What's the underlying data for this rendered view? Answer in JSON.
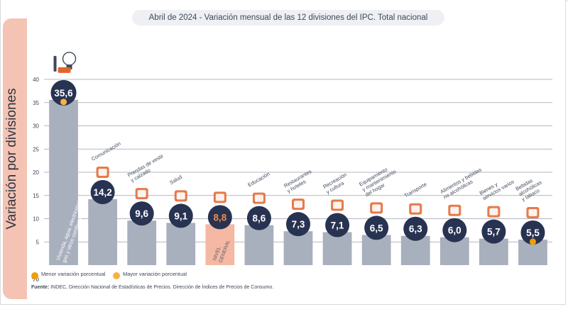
{
  "header": {
    "title": "Abril de 2024 - Variación mensual de las 12 divisiones del IPC. Total nacional"
  },
  "legend": {
    "min_label": "Menor variación porcentual",
    "max_label": "Mayor variación porcentual",
    "min_color": "#f0a000",
    "max_color": "#f7b23e"
  },
  "source": {
    "prefix": "Fuente:",
    "text": "INDEC, Dirección Nacional de Estadísticas de Precios. Dirección de Índices de Precios de Consumo."
  },
  "chart_data": {
    "type": "bar",
    "title": "Abril de 2024 - Variación mensual de las 12 divisiones del IPC. Total nacional",
    "xlabel": "",
    "ylabel": "Variación por divisiones",
    "y_unit": "%",
    "ylim": [
      0,
      40
    ],
    "yticks": [
      5,
      10,
      15,
      20,
      25,
      30,
      35,
      40
    ],
    "grid": true,
    "categories": [
      "Vivienda, agua, electricidad, gas y otros combustibles",
      "Comunicación",
      "Prendas de vestir y calzado",
      "Salud",
      "Nivel general",
      "Educación",
      "Restaurantes y hoteles",
      "Recreación y cultura",
      "Equipamiento y mantenimiento del hogar",
      "Transporte",
      "Alimentos y bebidas no alcohólicas",
      "Bienes y servicios varios",
      "Bebidas alcohólicas y tabaco"
    ],
    "category_labels": [
      [
        "Vivienda, agua, electricidad,",
        "gas y otros combustibles"
      ],
      [
        "Comunicación"
      ],
      [
        "Prendas de vestir",
        "y calzado"
      ],
      [
        "Salud"
      ],
      [
        "NIVEL",
        "GENERAL"
      ],
      [
        "Educación"
      ],
      [
        "Restaurantes",
        "y hoteles"
      ],
      [
        "Recreación",
        "y cultura"
      ],
      [
        "Equipamiento",
        "y mantenimiento",
        "del hogar"
      ],
      [
        "Transporte"
      ],
      [
        "Alimentos y bebidas",
        "no alcohólicas"
      ],
      [
        "Bienes y",
        "servicios varios"
      ],
      [
        "Bebidas",
        "alcohólicas",
        "y tabaco"
      ]
    ],
    "values": [
      35.6,
      14.2,
      9.6,
      9.1,
      8.8,
      8.6,
      7.3,
      7.1,
      6.5,
      6.3,
      6.0,
      5.7,
      5.5
    ],
    "value_labels": [
      "35,6",
      "14,2",
      "9,6",
      "9,1",
      "8,8",
      "8,6",
      "7,3",
      "7,1",
      "6,5",
      "6,3",
      "6,0",
      "5,7",
      "5,5"
    ],
    "highlight_index": 4,
    "max_index": 0,
    "min_index": 12,
    "icons": [
      "house-utilities-icon",
      "smartphone-icon",
      "t-shirt-icon",
      "first-aid-kit-icon",
      "shopping-basket-icon",
      "notebook-icon",
      "restaurant-icon",
      "beach-umbrella-icon",
      "washing-machine-icon",
      "bus-icon",
      "grocery-food-icon",
      "personal-care-icon",
      "drinks-tobacco-icon"
    ],
    "colors": {
      "bar": "#a8afbd",
      "highlight_bar": "#f4b8a3",
      "badge": "#283352",
      "badge_text": "#ffffff",
      "highlight_value": "#f08a4b",
      "grid": "#9aa1ad",
      "icon": "#e2642c"
    }
  }
}
